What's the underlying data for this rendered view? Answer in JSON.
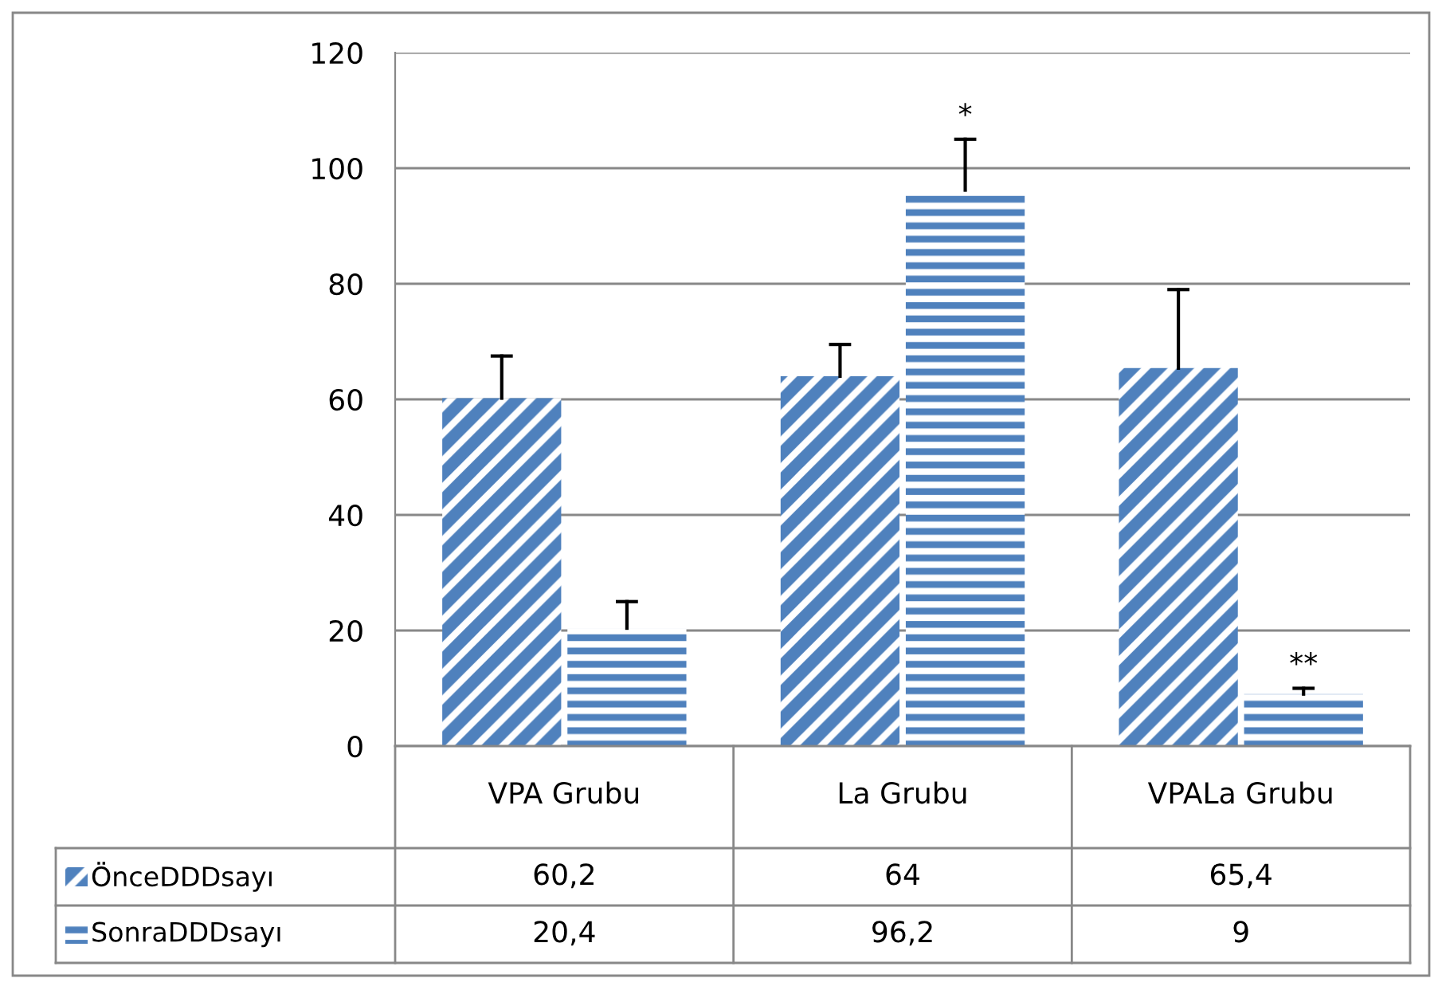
{
  "chart_data": {
    "type": "bar",
    "categories": [
      "VPA Grubu",
      "La Grubu",
      "VPALa Grubu"
    ],
    "series": [
      {
        "name": "ÖnceDDDsayı",
        "color": "#4f81bd",
        "values": [
          60.2,
          64,
          65.4
        ],
        "value_labels": [
          "60,2",
          "64",
          "65,4"
        ],
        "errors": [
          [
            60.2,
            67.5
          ],
          [
            64,
            69.5
          ],
          [
            65.4,
            79
          ]
        ]
      },
      {
        "name": "SonraDDDsayı",
        "color": "#4f81bd",
        "values": [
          20.4,
          96.2,
          9
        ],
        "value_labels": [
          "20,4",
          "96,2",
          "9"
        ],
        "errors": [
          [
            20.4,
            25
          ],
          [
            96.2,
            105
          ],
          [
            9,
            10
          ]
        ]
      }
    ],
    "ylim": [
      0,
      120
    ],
    "yticks": [
      0,
      20,
      40,
      60,
      80,
      100,
      120
    ],
    "grid": "y",
    "legend": "bottom",
    "annotations": [
      "*",
      "**"
    ]
  }
}
